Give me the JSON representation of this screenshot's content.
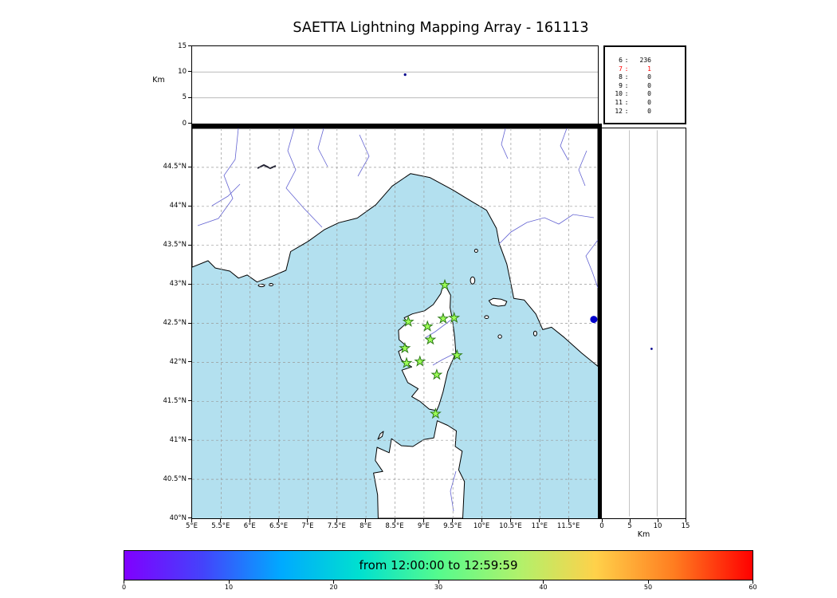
{
  "title": "SAETTA Lightning Mapping Array - 161113",
  "chart_data": [
    {
      "type": "scatter",
      "panel": "altitude-vs-time",
      "ylabel": "Km",
      "ylim": [
        0,
        15
      ],
      "yticks": [
        {
          "v": 15,
          "label": "15"
        },
        {
          "v": 10,
          "label": "10"
        },
        {
          "v": 5,
          "label": "5"
        },
        {
          "v": 0,
          "label": "0"
        }
      ],
      "time_range": [
        "12:00:00",
        "12:59:59"
      ],
      "points": [
        {
          "time_frac": 0.525,
          "alt_km": 9.5,
          "color": "#00008b"
        }
      ]
    },
    {
      "type": "table",
      "panel": "station-source-counts",
      "rows": [
        {
          "station": "6",
          "count": "236",
          "color": "#000000"
        },
        {
          "station": "7",
          "count": "1",
          "color": "#ff0000"
        },
        {
          "station": "8",
          "count": "0",
          "color": "#000000"
        },
        {
          "station": "9",
          "count": "0",
          "color": "#000000"
        },
        {
          "station": "10",
          "count": "0",
          "color": "#000000"
        },
        {
          "station": "11",
          "count": "0",
          "color": "#000000"
        },
        {
          "station": "12",
          "count": "0",
          "color": "#000000"
        }
      ]
    },
    {
      "type": "scatter",
      "panel": "map-lon-lat",
      "xlim": [
        5,
        12
      ],
      "ylim": [
        40,
        45
      ],
      "lon_ticks": [
        {
          "v": 5,
          "label": "5°E"
        },
        {
          "v": 5.5,
          "label": "5.5°E"
        },
        {
          "v": 6,
          "label": "6°E"
        },
        {
          "v": 6.5,
          "label": "6.5°E"
        },
        {
          "v": 7,
          "label": "7°E"
        },
        {
          "v": 7.5,
          "label": "7.5°E"
        },
        {
          "v": 8,
          "label": "8°E"
        },
        {
          "v": 8.5,
          "label": "8.5°E"
        },
        {
          "v": 9,
          "label": "9°E"
        },
        {
          "v": 9.5,
          "label": "9.5°E"
        },
        {
          "v": 10,
          "label": "10°E"
        },
        {
          "v": 10.5,
          "label": "10.5°E"
        },
        {
          "v": 11,
          "label": "11°E"
        },
        {
          "v": 11.5,
          "label": "11.5°E"
        }
      ],
      "lat_ticks": [
        {
          "v": 44.5,
          "label": "44.5°N"
        },
        {
          "v": 44,
          "label": "44°N"
        },
        {
          "v": 43.5,
          "label": "43.5°N"
        },
        {
          "v": 43,
          "label": "43°N"
        },
        {
          "v": 42.5,
          "label": "42.5°N"
        },
        {
          "v": 42,
          "label": "42°N"
        },
        {
          "v": 41.5,
          "label": "41.5°N"
        },
        {
          "v": 41,
          "label": "41°N"
        },
        {
          "v": 40.5,
          "label": "40.5°N"
        },
        {
          "v": 40,
          "label": "40°N"
        }
      ],
      "grid_step_deg": 0.5,
      "stations_lonlat": [
        [
          9.36,
          42.99
        ],
        [
          8.73,
          42.52
        ],
        [
          9.06,
          42.46
        ],
        [
          9.33,
          42.56
        ],
        [
          9.52,
          42.57
        ],
        [
          9.11,
          42.29
        ],
        [
          8.67,
          42.18
        ],
        [
          9.57,
          42.09
        ],
        [
          8.93,
          42.01
        ],
        [
          8.7,
          41.99
        ],
        [
          9.22,
          41.84
        ],
        [
          9.2,
          41.34
        ]
      ],
      "sources": [
        {
          "lon": 11.93,
          "lat": 42.55,
          "color": "#0000cd"
        }
      ],
      "style": {
        "sea_color": "#b3e0ef",
        "land_color": "#ffffff",
        "coast_color": "#000000",
        "river_color": "#6464d2",
        "grid_color": "#999999",
        "station_fill": "#9dff57",
        "station_edge": "#2d7a17"
      }
    },
    {
      "type": "scatter",
      "panel": "altitude-vs-latitude",
      "xlabel": "Km",
      "xlim": [
        0,
        15
      ],
      "xticks": [
        {
          "v": 0,
          "label": "0"
        },
        {
          "v": 5,
          "label": "5"
        },
        {
          "v": 10,
          "label": "10"
        },
        {
          "v": 15,
          "label": "15"
        }
      ],
      "points": [
        {
          "alt_km": 9.0,
          "lat": 42.17,
          "color": "#00008b"
        }
      ]
    },
    {
      "type": "colorbar",
      "label": "from 12:00:00 to 12:59:59",
      "range": [
        0,
        60
      ],
      "ticks": [
        {
          "v": 0,
          "label": "0"
        },
        {
          "v": 10,
          "label": "10"
        },
        {
          "v": 20,
          "label": "20"
        },
        {
          "v": 30,
          "label": "30"
        },
        {
          "v": 40,
          "label": "40"
        },
        {
          "v": 50,
          "label": "50"
        },
        {
          "v": 60,
          "label": "60"
        }
      ],
      "gradient": [
        "#8000ff",
        "#4443fb",
        "#00aaff",
        "#00e0cf",
        "#55fb8d",
        "#aef26c",
        "#ffd14a",
        "#ff7d20",
        "#ff0000"
      ]
    }
  ]
}
